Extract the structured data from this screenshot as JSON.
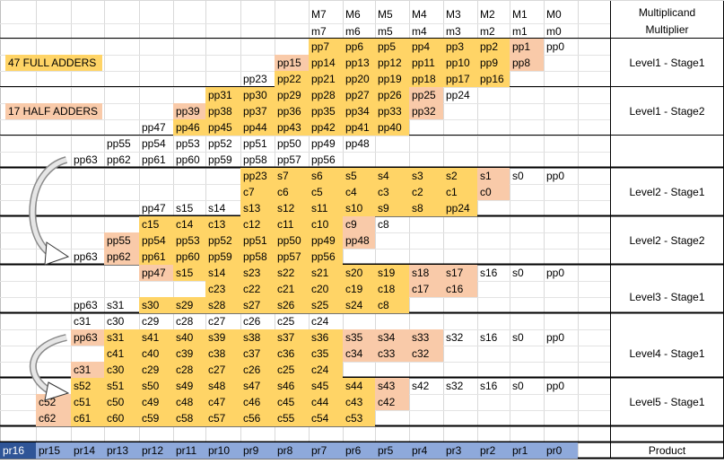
{
  "header": {
    "m_labels": [
      "M7",
      "M6",
      "M5",
      "M4",
      "M3",
      "M2",
      "M1",
      "M0"
    ],
    "mult_labels": [
      "m7",
      "m6",
      "m5",
      "m4",
      "m3",
      "m2",
      "m1",
      "m0"
    ],
    "right_line1": "Multiplicand",
    "right_line2": "Multiplier"
  },
  "side_notes": {
    "full_adders": "47 FULL ADDERS",
    "half_adders": "17 HALF ADDERS"
  },
  "stage_labels": [
    "Level1 - Stage1",
    "Level1 - Stage2",
    "Level2 - Stage1",
    "Level2 - Stage2",
    "Level3 - Stage1",
    "Level4 - Stage1",
    "Level5 - Stage1",
    "Product"
  ],
  "rows": [
    [
      "",
      "",
      "",
      "",
      "",
      "",
      "",
      "",
      "",
      "pp7:y",
      "pp6:y",
      "pp5:y",
      "pp4:y",
      "pp3:y",
      "pp2:y",
      "pp1:o",
      "pp0"
    ],
    [
      "",
      "",
      "",
      "",
      "",
      "",
      "",
      "",
      "pp15:o",
      "pp14:y",
      "pp13:y",
      "pp12:y",
      "pp11:y",
      "pp10:y",
      "pp9:y",
      "pp8:o",
      ""
    ],
    [
      "",
      "",
      "",
      "",
      "",
      "",
      "",
      "pp23",
      "pp22:y",
      "pp21:y",
      "pp20:y",
      "pp19:y",
      "pp18:y",
      "pp17:y",
      "pp16:y",
      "",
      ""
    ],
    [
      "",
      "",
      "",
      "",
      "",
      "",
      "pp31:y",
      "pp30:y",
      "pp29:y",
      "pp28:y",
      "pp27:y",
      "pp26:y",
      "pp25:o",
      "pp24",
      "",
      "",
      ""
    ],
    [
      "",
      "",
      "",
      "",
      "",
      "pp39:o",
      "pp38:y",
      "pp37:y",
      "pp36:y",
      "pp35:y",
      "pp34:y",
      "pp33:y",
      "pp32:o",
      "",
      "",
      "",
      ""
    ],
    [
      "",
      "",
      "",
      "",
      "pp47",
      "pp46:y",
      "pp45:y",
      "pp44:y",
      "pp43:y",
      "pp42:y",
      "pp41:y",
      "pp40:y",
      "",
      "",
      "",
      "",
      ""
    ],
    [
      "",
      "",
      "",
      "pp55",
      "pp54",
      "pp53",
      "pp52",
      "pp51",
      "pp50",
      "pp49",
      "pp48",
      "",
      "",
      "",
      "",
      "",
      ""
    ],
    [
      "",
      "",
      "pp63",
      "pp62",
      "pp61",
      "pp60",
      "pp59",
      "pp58",
      "pp57",
      "pp56",
      "",
      "",
      "",
      "",
      "",
      "",
      ""
    ],
    [
      "",
      "",
      "",
      "",
      "",
      "",
      "",
      "pp23:y",
      "s7:y",
      "s6:y",
      "s5:y",
      "s4:y",
      "s3:y",
      "s2:y",
      "s1:o",
      "s0",
      "pp0"
    ],
    [
      "",
      "",
      "",
      "",
      "",
      "",
      "",
      "c7:y",
      "c6:y",
      "c5:y",
      "c4:y",
      "c3:y",
      "c2:y",
      "c1:y",
      "c0:o",
      "",
      ""
    ],
    [
      "",
      "",
      "",
      "",
      "pp47",
      "s15",
      "s14",
      "s13:y",
      "s12:y",
      "s11:y",
      "s10:y",
      "s9:y",
      "s8:y",
      "pp24:y",
      "",
      "",
      ""
    ],
    [
      "",
      "",
      "",
      "",
      "c15:y",
      "c14:y",
      "c13:y",
      "c12:y",
      "c11:y",
      "c10:y",
      "c9:o",
      "c8",
      "",
      "",
      "",
      "",
      ""
    ],
    [
      "",
      "",
      "",
      "pp55:o",
      "pp54:y",
      "pp53:y",
      "pp52:y",
      "pp51:y",
      "pp50:y",
      "pp49:y",
      "pp48:o",
      "",
      "",
      "",
      "",
      "",
      ""
    ],
    [
      "",
      "",
      "pp63",
      "pp62:o",
      "pp61:y",
      "pp60:y",
      "pp59:y",
      "pp58:y",
      "pp57:y",
      "pp56:y",
      "",
      "",
      "",
      "",
      "",
      "",
      ""
    ],
    [
      "",
      "",
      "",
      "",
      "pp47:o",
      "s15:y",
      "s14:y",
      "s23:y",
      "s22:y",
      "s21:y",
      "s20:y",
      "s19:y",
      "s18:o",
      "s17:o",
      "s16",
      "s0",
      "pp0"
    ],
    [
      "",
      "",
      "",
      "",
      "",
      "",
      "c23:y",
      "c22:y",
      "c21:y",
      "c20:y",
      "c19:y",
      "c18:y",
      "c17:o",
      "c16:o",
      "",
      "",
      ""
    ],
    [
      "",
      "",
      "pp63",
      "s31",
      "s30:y",
      "s29:y",
      "s28:y",
      "s27:y",
      "s26:y",
      "s25:y",
      "s24:y",
      "c8:y",
      "",
      "",
      "",
      "",
      ""
    ],
    [
      "",
      "",
      "c31",
      "c30",
      "c29",
      "c28",
      "c27",
      "c26",
      "c25",
      "c24",
      "",
      "",
      "",
      "",
      "",
      "",
      ""
    ],
    [
      "",
      "",
      "pp63:o",
      "s31:y",
      "s41:y",
      "s40:y",
      "s39:y",
      "s38:y",
      "s37:y",
      "s36:y",
      "s35:o",
      "s34:o",
      "s33:o",
      "s32",
      "s16",
      "s0",
      "pp0"
    ],
    [
      "",
      "",
      "",
      "c41:y",
      "c40:y",
      "c39:y",
      "c38:y",
      "c37:y",
      "c36:y",
      "c35:y",
      "c34:o",
      "c33:o",
      "c32:o",
      "",
      "",
      "",
      ""
    ],
    [
      "",
      "",
      "c31:o",
      "c30:y",
      "c29:y",
      "c28:y",
      "c27:y",
      "c26:y",
      "c25:y",
      "c24:y",
      "",
      "",
      "",
      "",
      "",
      "",
      ""
    ],
    [
      "",
      "",
      "s52:y",
      "s51:y",
      "s50:y",
      "s49:y",
      "s48:y",
      "s47:y",
      "s46:y",
      "s45:y",
      "s44:y",
      "s43:o",
      "s42",
      "s32",
      "s16",
      "s0",
      "pp0"
    ],
    [
      "",
      "c52:o",
      "c51:y",
      "c50:y",
      "c49:y",
      "c48:y",
      "c47:y",
      "c46:y",
      "c45:y",
      "c44:y",
      "c43:y",
      "c42:o",
      "",
      "",
      "",
      "",
      ""
    ],
    [
      "",
      "c62:o",
      "c61:y",
      "c60:y",
      "c59:y",
      "c58:y",
      "c57:y",
      "c56:y",
      "c55:y",
      "c54:y",
      "c53:y",
      "",
      "",
      "",
      "",
      "",
      ""
    ],
    [
      "",
      "",
      "",
      "",
      "",
      "",
      "",
      "",
      "",
      "",
      "",
      "",
      "",
      "",
      "",
      "",
      ""
    ],
    [
      "pr16:db",
      "pr15:b",
      "pr14:b",
      "pr13:b",
      "pr12:b",
      "pr11:b",
      "pr10:b",
      "pr9:b",
      "pr8:b",
      "pr7:b",
      "pr6:b",
      "pr5:b",
      "pr4:b",
      "pr3:b",
      "pr2:b",
      "pr1:b",
      "pr0:b"
    ]
  ]
}
